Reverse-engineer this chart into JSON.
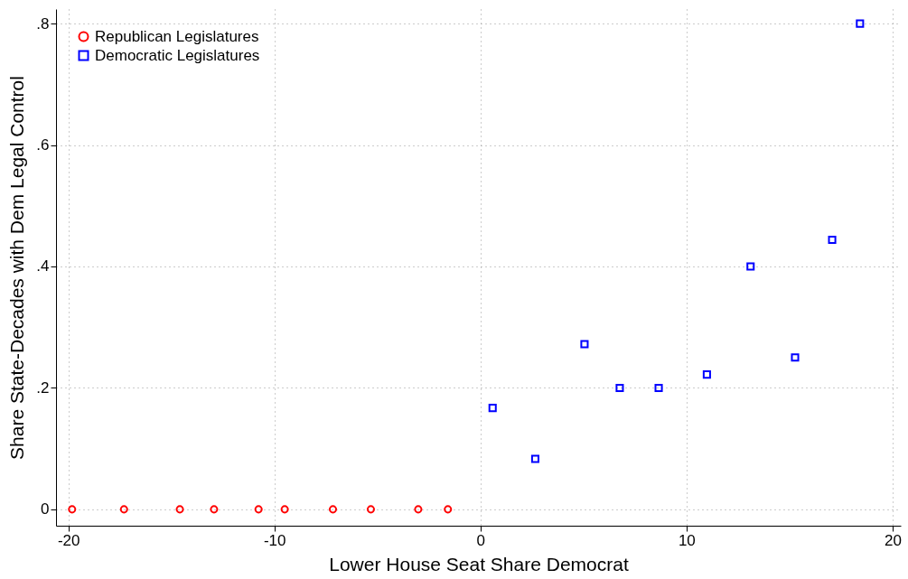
{
  "chart_data": {
    "type": "scatter",
    "xlabel": "Lower House Seat Share Democrat",
    "ylabel": "Share State-Decades with Dem Legal Control",
    "xlim": [
      -20.6,
      20.4
    ],
    "xticks": [
      -20,
      -10,
      0,
      10,
      20
    ],
    "ylim": [
      -0.027,
      0.824
    ],
    "yticks": [
      0,
      {
        "value": 0.2,
        "label": ".2"
      },
      {
        "value": 0.4,
        "label": ".4"
      },
      {
        "value": 0.6,
        "label": ".6"
      },
      {
        "value": 0.8,
        "label": ".8"
      }
    ],
    "grid": true,
    "legend": "top left",
    "series": [
      {
        "name": "Republican Legislatures",
        "color": "#ff0000",
        "marker": "circle",
        "x": [
          -19.82,
          -17.3,
          -14.59,
          -12.93,
          -10.77,
          -9.5,
          -7.16,
          -5.32,
          -3.02,
          -1.58
        ],
        "values": [
          0,
          0,
          0,
          0,
          0,
          0,
          0,
          0,
          0,
          0
        ]
      },
      {
        "name": "Democratic Legislatures",
        "color": "#0000ff",
        "marker": "square",
        "x": [
          0.59,
          2.66,
          5.05,
          6.76,
          8.65,
          10.99,
          13.11,
          15.27,
          17.07,
          18.42
        ],
        "values": [
          0.167,
          0.083,
          0.272,
          0.2,
          0.2,
          0.222,
          0.4,
          0.25,
          0.444,
          0.8
        ]
      }
    ]
  }
}
